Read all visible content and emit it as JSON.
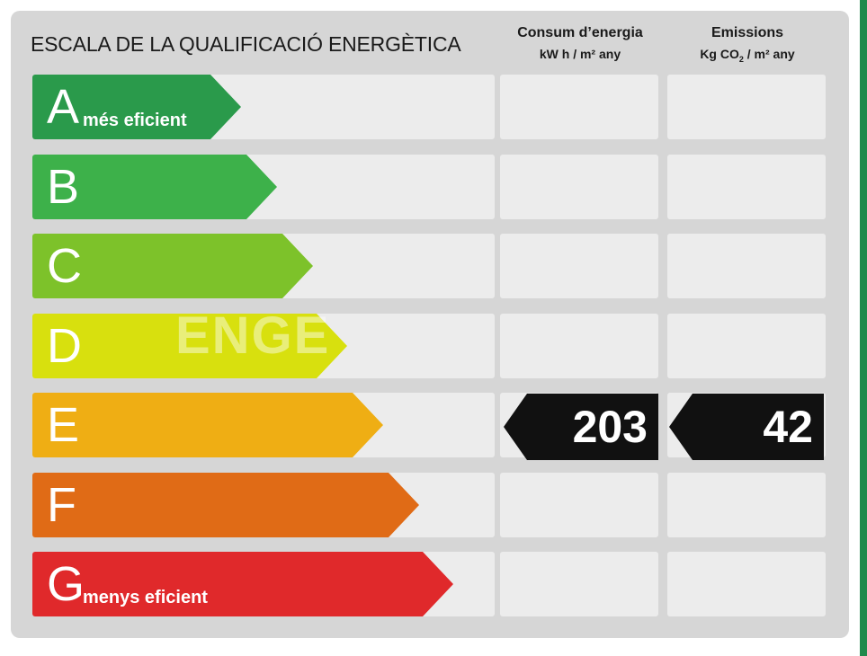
{
  "title": "ESCALA DE LA QUALIFICACIÓ ENERGÈTICA",
  "columns": {
    "consumption": {
      "heading": "Consum d’energia",
      "unit": "kW h / m² any"
    },
    "emissions": {
      "heading": "Emissions",
      "unit_prefix": "Kg CO",
      "unit_sub": "2",
      "unit_suffix": " / m² any"
    }
  },
  "watermark": "ENGE",
  "grades": [
    {
      "letter": "A",
      "label": "més eficient",
      "color": "#2a9a4b"
    },
    {
      "letter": "B",
      "label": "",
      "color": "#3db14a"
    },
    {
      "letter": "C",
      "label": "",
      "color": "#7dc22a"
    },
    {
      "letter": "D",
      "label": "",
      "color": "#d8e00e"
    },
    {
      "letter": "E",
      "label": "",
      "color": "#efae14"
    },
    {
      "letter": "F",
      "label": "",
      "color": "#e06b16"
    },
    {
      "letter": "G",
      "label": "menys eficient",
      "color": "#e0292b"
    }
  ],
  "rating": {
    "grade": "E",
    "consumption": "203",
    "emissions": "42"
  }
}
